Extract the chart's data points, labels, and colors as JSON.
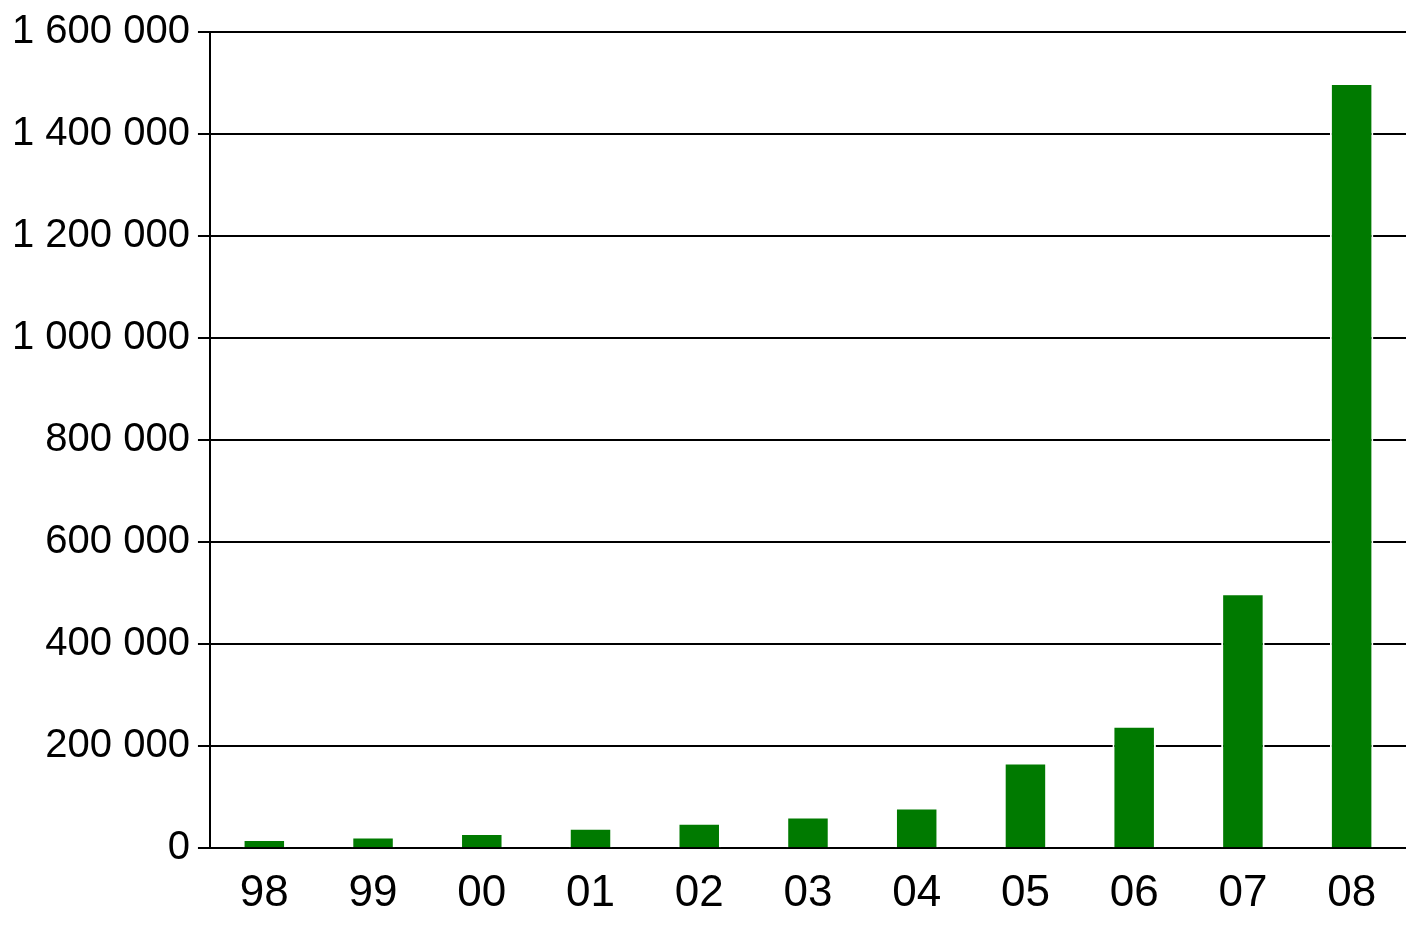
{
  "chart_data": {
    "type": "bar",
    "categories": [
      "98",
      "99",
      "00",
      "01",
      "02",
      "03",
      "04",
      "05",
      "06",
      "07",
      "08"
    ],
    "values": [
      18000,
      23000,
      30000,
      40000,
      50000,
      62000,
      80000,
      168000,
      240000,
      500000,
      1500000
    ],
    "color": "#007a00",
    "ylim": [
      0,
      1600000
    ],
    "yticks": [
      {
        "value": 0,
        "label": "0"
      },
      {
        "value": 200000,
        "label": "200 000"
      },
      {
        "value": 400000,
        "label": "400 000"
      },
      {
        "value": 600000,
        "label": "600 000"
      },
      {
        "value": 800000,
        "label": "800 000"
      },
      {
        "value": 1000000,
        "label": "1 000 000"
      },
      {
        "value": 1200000,
        "label": "1 200 000"
      },
      {
        "value": 1400000,
        "label": "1 400 000"
      },
      {
        "value": 1600000,
        "label": "1 600 000"
      }
    ],
    "grid": "y",
    "legend": false
  }
}
